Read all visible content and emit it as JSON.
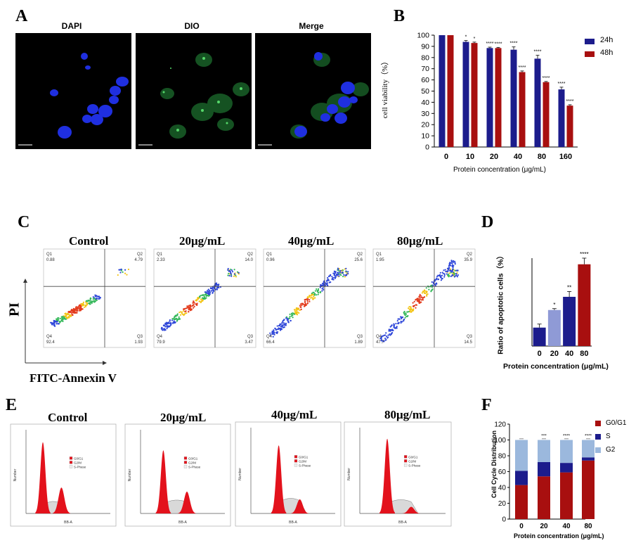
{
  "panels": {
    "A": "A",
    "B": "B",
    "C": "C",
    "D": "D",
    "E": "E",
    "F": "F"
  },
  "panelA": {
    "titles": [
      "DAPI",
      "DIO",
      "Merge"
    ],
    "colors": {
      "dapi": "#1a2bd6",
      "dio": "#2ea84a"
    }
  },
  "conditions": [
    "Control",
    "20μg/mL",
    "40μg/mL",
    "80μg/mL"
  ],
  "flow": {
    "ylabel": "PI",
    "xlabel": "FITC-Annexin V",
    "quadrants": [
      {
        "Q1": "0.88",
        "Q2": "4.79",
        "Q3": "1.93",
        "Q4": "92.4"
      },
      {
        "Q1": "2.33",
        "Q2": "14.0",
        "Q3": "3.47",
        "Q4": "79.9"
      },
      {
        "Q1": "0.96",
        "Q2": "25.6",
        "Q3": "1.89",
        "Q4": "66.4"
      },
      {
        "Q1": "1.95",
        "Q2": "35.9",
        "Q3": "14.5",
        "Q4": "47.7"
      }
    ],
    "qnames": {
      "Q1": "Q1",
      "Q2": "Q2",
      "Q3": "Q3",
      "Q4": "Q4"
    }
  },
  "cellcycle": {
    "legend": [
      "G0/G1",
      "G2/M",
      "S-Phase"
    ],
    "xlabel": "BB-A",
    "ylabel": "Number"
  },
  "chart_data": [
    {
      "id": "B",
      "type": "bar",
      "categories": [
        "0",
        "10",
        "20",
        "40",
        "80",
        "160"
      ],
      "series": [
        {
          "name": "24h",
          "color": "#1c1c8c",
          "values": [
            100,
            94,
            88.5,
            87,
            79,
            51.5
          ],
          "err": [
            0,
            1.2,
            0.8,
            2.5,
            3,
            2
          ],
          "sig": [
            "",
            "*",
            "****",
            "****",
            "****",
            "****"
          ]
        },
        {
          "name": "48h",
          "color": "#a80f0f",
          "values": [
            100,
            93,
            88.5,
            67,
            58,
            37
          ],
          "err": [
            0,
            0.8,
            0.6,
            1,
            0.6,
            0.8
          ],
          "sig": [
            "",
            "*",
            "****",
            "****",
            "****",
            "****"
          ]
        }
      ],
      "xlabel": "Protein concentration (μg/mL)",
      "ylabel": "cell viability（%）",
      "ylim": [
        0,
        100
      ],
      "yticks": [
        0,
        10,
        20,
        30,
        40,
        50,
        60,
        70,
        80,
        90,
        100
      ]
    },
    {
      "id": "D",
      "type": "bar",
      "categories": [
        "0",
        "20",
        "40",
        "80"
      ],
      "values": [
        10.5,
        20.5,
        28,
        46.5
      ],
      "err": [
        2,
        0.8,
        3,
        3.5
      ],
      "colors": [
        "#1c1c8c",
        "#8f9ad6",
        "#1c1c8c",
        "#a80f0f"
      ],
      "sig": [
        "",
        "*",
        "**",
        "****"
      ],
      "xlabel": "Protein concentration (μg/mL)",
      "ylabel": "Ratio of apoptotic cells（%）",
      "ylim": [
        0,
        50
      ]
    },
    {
      "id": "F",
      "type": "bar",
      "categories": [
        "0",
        "20",
        "40",
        "80"
      ],
      "series": [
        {
          "name": "G0/G1",
          "color": "#a80f0f",
          "values": [
            43,
            54,
            59,
            74
          ]
        },
        {
          "name": "S",
          "color": "#1c1c8c",
          "values": [
            18,
            18,
            12,
            4
          ]
        },
        {
          "name": "G2",
          "color": "#9bb8dd",
          "values": [
            39,
            28,
            29,
            22
          ]
        }
      ],
      "sig": [
        "",
        "***",
        "****",
        "****"
      ],
      "xlabel": "Protein concentration (μg/mL)",
      "ylabel": "Cell Cycle Distribution",
      "ylim": [
        0,
        120
      ],
      "yticks": [
        0,
        20,
        40,
        60,
        80,
        100,
        120
      ]
    }
  ]
}
